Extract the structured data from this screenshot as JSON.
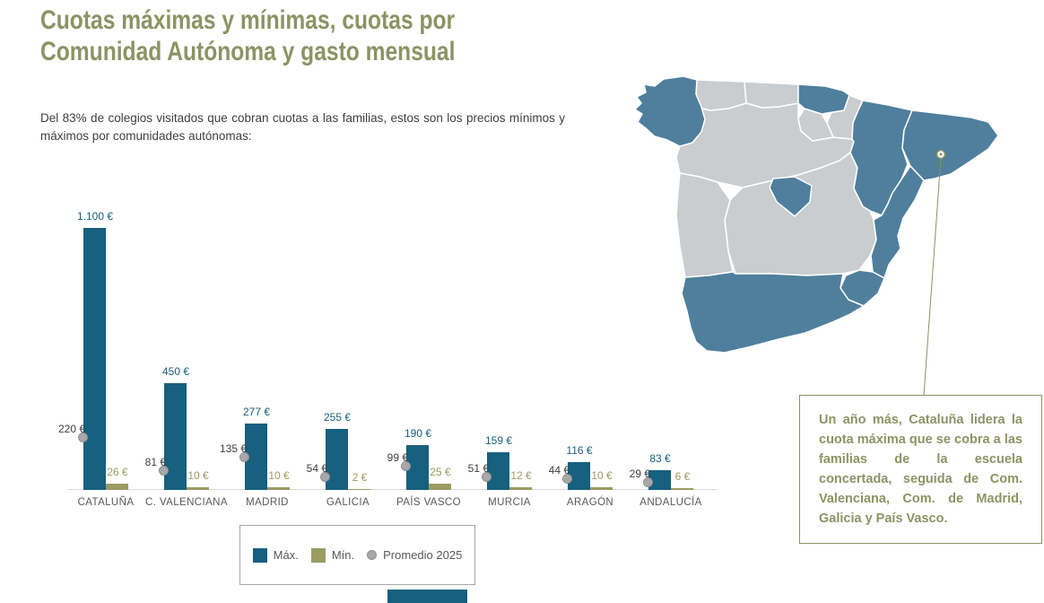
{
  "header": {
    "title_line1": "Cuotas máximas y mínimas, cuotas por",
    "title_line2": "Comunidad Autónoma y gasto mensual",
    "intro": "Del 83% de colegios visitados que cobran cuotas a las familias, estos son los precios mínimos y máximos por comunidades autónomas:"
  },
  "colors": {
    "title": "#8a9464",
    "max": "#17607e",
    "min": "#9b9b62",
    "avg_dot": "#a8a8a8",
    "axis": "#d9d9d9",
    "map_highlight": "#4f7f9c",
    "map_muted": "#c9cdd0",
    "callout": "#8a9464",
    "accent_bar": "#17607e"
  },
  "chart_data": {
    "type": "bar",
    "title": "Cuotas máximas y mínimas por Comunidad Autónoma",
    "categories": [
      "CATALUÑA",
      "C. VALENCIANA",
      "MADRID",
      "GALICIA",
      "PAÍS VASCO",
      "MURCIA",
      "ARAGÓN",
      "ANDALUCÍA"
    ],
    "series": [
      {
        "name": "Máx.",
        "style": "bar",
        "color": "#17607e",
        "values": [
          1100,
          450,
          277,
          255,
          190,
          159,
          116,
          83
        ],
        "display_values": [
          "1.100 €",
          "450 €",
          "277 €",
          "255 €",
          "190 €",
          "159 €",
          "116 €",
          "83 €"
        ]
      },
      {
        "name": "Mín.",
        "style": "bar",
        "color": "#9b9b62",
        "values": [
          26,
          10,
          10,
          2,
          25,
          12,
          10,
          6
        ],
        "display_values": [
          "26 €",
          "10 €",
          "10 €",
          "2 €",
          "25 €",
          "12 €",
          "10 €",
          "6 €"
        ]
      },
      {
        "name": "Promedio 2025",
        "style": "point",
        "color": "#a8a8a8",
        "values": [
          220,
          81,
          135,
          54,
          99,
          51,
          44,
          29
        ],
        "display_values": [
          "220 €",
          "81 €",
          "135 €",
          "54 €",
          "99 €",
          "51 €",
          "44 €",
          "29 €"
        ]
      }
    ],
    "ylabel": "",
    "xlabel": "",
    "ylim": [
      0,
      1100
    ],
    "grid": false,
    "legend_position": "bottom"
  },
  "map": {
    "highlight_color": "#4f7f9c",
    "muted_color": "#c9cdd0",
    "regions": [
      {
        "id": "castilla-y-leon",
        "name": "Castilla y León",
        "status": "muted"
      },
      {
        "id": "castilla-la-mancha",
        "name": "Castilla-La Mancha",
        "status": "muted"
      },
      {
        "id": "extremadura",
        "name": "Extremadura",
        "status": "muted"
      },
      {
        "id": "asturias",
        "name": "Asturias",
        "status": "muted"
      },
      {
        "id": "cantabria",
        "name": "Cantabria",
        "status": "muted"
      },
      {
        "id": "navarra",
        "name": "Navarra",
        "status": "muted"
      },
      {
        "id": "la-rioja",
        "name": "La Rioja",
        "status": "muted"
      },
      {
        "id": "galicia",
        "name": "Galicia",
        "status": "highlighted"
      },
      {
        "id": "pais-vasco",
        "name": "País Vasco",
        "status": "highlighted"
      },
      {
        "id": "aragon",
        "name": "Aragón",
        "status": "highlighted"
      },
      {
        "id": "cataluna",
        "name": "Cataluña",
        "status": "highlighted"
      },
      {
        "id": "madrid",
        "name": "Comunidad de Madrid",
        "status": "highlighted"
      },
      {
        "id": "comunidad-valenciana",
        "name": "Comunidad Valenciana",
        "status": "highlighted"
      },
      {
        "id": "murcia",
        "name": "Murcia",
        "status": "highlighted"
      },
      {
        "id": "andalucia",
        "name": "Andalucía",
        "status": "highlighted"
      }
    ],
    "callout_marker_region": "Cataluña",
    "callout_color": "#8a9464"
  },
  "callout_box": {
    "text": "Un año más, Cataluña lidera la cuota máxima que se cobra a las familias de la escuela concertada, seguida de Com. Valenciana, Com. de Madrid, Galicia y País Vasco."
  }
}
